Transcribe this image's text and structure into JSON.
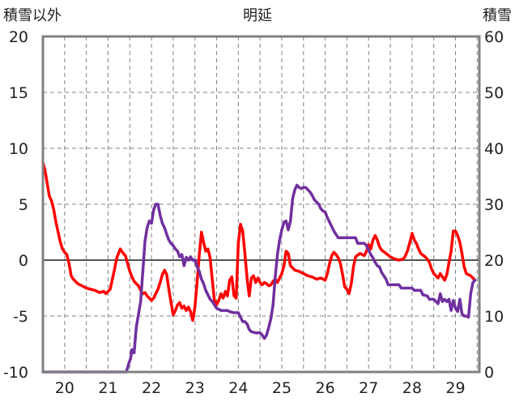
{
  "chart_data": {
    "type": "line",
    "title": "明延",
    "left_axis_label": "積雪以外",
    "right_axis_label": "積雪",
    "x_ticks": [
      "20",
      "21",
      "22",
      "23",
      "24",
      "25",
      "26",
      "27",
      "28",
      "29"
    ],
    "x_range": [
      19.5,
      29.55
    ],
    "y_left": {
      "ticks": [
        20,
        15,
        10,
        5,
        0,
        -5,
        -10
      ],
      "range": [
        -10,
        20
      ]
    },
    "y_right": {
      "ticks": [
        60,
        50,
        40,
        30,
        20,
        10,
        0
      ],
      "range": [
        0,
        60
      ]
    },
    "grid": true,
    "zero_line": true,
    "colors": {
      "temperature": "#ff0000",
      "snow": "#7030a0",
      "frame": "#808080",
      "grid": "#808080",
      "zero_line": "#555555"
    },
    "series": [
      {
        "axis": "left",
        "color": "#ff0000",
        "points": [
          [
            19.5,
            8.7
          ],
          [
            19.55,
            8.0
          ],
          [
            19.6,
            6.8
          ],
          [
            19.65,
            5.7
          ],
          [
            19.7,
            5.3
          ],
          [
            19.75,
            4.5
          ],
          [
            19.8,
            3.4
          ],
          [
            19.85,
            2.5
          ],
          [
            19.9,
            1.6
          ],
          [
            19.95,
            1.0
          ],
          [
            20.0,
            0.7
          ],
          [
            20.05,
            0.5
          ],
          [
            20.1,
            -0.3
          ],
          [
            20.15,
            -1.4
          ],
          [
            20.2,
            -1.7
          ],
          [
            20.3,
            -2.1
          ],
          [
            20.4,
            -2.3
          ],
          [
            20.5,
            -2.5
          ],
          [
            20.6,
            -2.6
          ],
          [
            20.7,
            -2.7
          ],
          [
            20.8,
            -2.9
          ],
          [
            20.9,
            -2.8
          ],
          [
            20.95,
            -3.0
          ],
          [
            21.05,
            -2.6
          ],
          [
            21.15,
            -0.8
          ],
          [
            21.2,
            0.2
          ],
          [
            21.28,
            1.0
          ],
          [
            21.35,
            0.6
          ],
          [
            21.4,
            0.4
          ],
          [
            21.45,
            -0.3
          ],
          [
            21.5,
            -1.0
          ],
          [
            21.55,
            -1.5
          ],
          [
            21.6,
            -1.9
          ],
          [
            21.65,
            -2.1
          ],
          [
            21.7,
            -2.3
          ],
          [
            21.75,
            -2.7
          ],
          [
            21.8,
            -3.0
          ],
          [
            21.85,
            -2.9
          ],
          [
            21.9,
            -3.2
          ],
          [
            21.95,
            -3.4
          ],
          [
            22.0,
            -3.6
          ],
          [
            22.05,
            -3.4
          ],
          [
            22.1,
            -3.0
          ],
          [
            22.15,
            -2.6
          ],
          [
            22.2,
            -2.0
          ],
          [
            22.25,
            -1.3
          ],
          [
            22.3,
            -0.9
          ],
          [
            22.35,
            -1.3
          ],
          [
            22.4,
            -2.6
          ],
          [
            22.45,
            -3.8
          ],
          [
            22.5,
            -4.9
          ],
          [
            22.55,
            -4.5
          ],
          [
            22.6,
            -4.0
          ],
          [
            22.65,
            -3.8
          ],
          [
            22.7,
            -4.3
          ],
          [
            22.75,
            -4.1
          ],
          [
            22.8,
            -4.5
          ],
          [
            22.85,
            -4.2
          ],
          [
            22.9,
            -4.6
          ],
          [
            22.95,
            -5.4
          ],
          [
            23.0,
            -4.2
          ],
          [
            23.05,
            -2.0
          ],
          [
            23.1,
            0.5
          ],
          [
            23.15,
            2.5
          ],
          [
            23.2,
            1.6
          ],
          [
            23.25,
            0.8
          ],
          [
            23.3,
            1.0
          ],
          [
            23.35,
            0.2
          ],
          [
            23.4,
            -1.8
          ],
          [
            23.45,
            -3.6
          ],
          [
            23.5,
            -4.0
          ],
          [
            23.55,
            -3.6
          ],
          [
            23.6,
            -3.0
          ],
          [
            23.65,
            -3.4
          ],
          [
            23.7,
            -2.8
          ],
          [
            23.75,
            -3.2
          ],
          [
            23.8,
            -1.8
          ],
          [
            23.85,
            -1.5
          ],
          [
            23.9,
            -3.2
          ],
          [
            23.95,
            -3.4
          ],
          [
            24.0,
            1.5
          ],
          [
            24.05,
            3.2
          ],
          [
            24.1,
            2.6
          ],
          [
            24.15,
            0.6
          ],
          [
            24.2,
            -1.6
          ],
          [
            24.25,
            -3.2
          ],
          [
            24.3,
            -1.6
          ],
          [
            24.35,
            -1.4
          ],
          [
            24.4,
            -2.0
          ],
          [
            24.45,
            -1.6
          ],
          [
            24.5,
            -2.0
          ],
          [
            24.55,
            -2.2
          ],
          [
            24.6,
            -2.0
          ],
          [
            24.65,
            -2.1
          ],
          [
            24.7,
            -2.3
          ],
          [
            24.75,
            -2.2
          ],
          [
            24.8,
            -1.9
          ],
          [
            24.85,
            -1.7
          ],
          [
            24.9,
            -2.0
          ],
          [
            24.95,
            -1.6
          ],
          [
            25.0,
            -1.2
          ],
          [
            25.05,
            -0.5
          ],
          [
            25.1,
            0.8
          ],
          [
            25.15,
            0.6
          ],
          [
            25.2,
            -0.5
          ],
          [
            25.3,
            -0.9
          ],
          [
            25.4,
            -1.0
          ],
          [
            25.5,
            -1.2
          ],
          [
            25.6,
            -1.4
          ],
          [
            25.7,
            -1.5
          ],
          [
            25.8,
            -1.7
          ],
          [
            25.9,
            -1.6
          ],
          [
            26.0,
            -1.8
          ],
          [
            26.05,
            -1.2
          ],
          [
            26.1,
            -0.3
          ],
          [
            26.15,
            0.4
          ],
          [
            26.2,
            0.7
          ],
          [
            26.25,
            0.5
          ],
          [
            26.3,
            0.2
          ],
          [
            26.35,
            -0.3
          ],
          [
            26.4,
            -1.3
          ],
          [
            26.45,
            -2.4
          ],
          [
            26.5,
            -2.6
          ],
          [
            26.55,
            -3.0
          ],
          [
            26.6,
            -2.1
          ],
          [
            26.65,
            -0.6
          ],
          [
            26.7,
            0.3
          ],
          [
            26.8,
            0.6
          ],
          [
            26.9,
            0.4
          ],
          [
            26.95,
            0.8
          ],
          [
            27.0,
            1.4
          ],
          [
            27.05,
            1.0
          ],
          [
            27.1,
            1.8
          ],
          [
            27.15,
            2.2
          ],
          [
            27.2,
            1.8
          ],
          [
            27.25,
            1.2
          ],
          [
            27.3,
            0.9
          ],
          [
            27.4,
            0.6
          ],
          [
            27.5,
            0.3
          ],
          [
            27.6,
            0.1
          ],
          [
            27.7,
            0.0
          ],
          [
            27.8,
            0.1
          ],
          [
            27.85,
            0.4
          ],
          [
            27.9,
            0.9
          ],
          [
            27.95,
            1.6
          ],
          [
            28.0,
            2.4
          ],
          [
            28.05,
            1.8
          ],
          [
            28.1,
            1.5
          ],
          [
            28.15,
            1.0
          ],
          [
            28.2,
            0.6
          ],
          [
            28.3,
            0.3
          ],
          [
            28.35,
            0.1
          ],
          [
            28.4,
            -0.2
          ],
          [
            28.45,
            -0.8
          ],
          [
            28.5,
            -1.2
          ],
          [
            28.55,
            -1.4
          ],
          [
            28.6,
            -1.6
          ],
          [
            28.65,
            -1.2
          ],
          [
            28.7,
            -1.5
          ],
          [
            28.75,
            -1.8
          ],
          [
            28.8,
            -1.3
          ],
          [
            28.85,
            -0.2
          ],
          [
            28.9,
            0.8
          ],
          [
            28.95,
            2.6
          ],
          [
            29.0,
            2.6
          ],
          [
            29.05,
            2.2
          ],
          [
            29.1,
            1.6
          ],
          [
            29.15,
            0.6
          ],
          [
            29.2,
            -0.6
          ],
          [
            29.25,
            -1.2
          ],
          [
            29.3,
            -1.3
          ],
          [
            29.35,
            -1.4
          ],
          [
            29.4,
            -1.6
          ],
          [
            29.45,
            -1.8
          ]
        ]
      },
      {
        "axis": "right",
        "color": "#7030a0",
        "points": [
          [
            19.5,
            0
          ],
          [
            21.42,
            0
          ],
          [
            21.48,
            1.6
          ],
          [
            21.52,
            2.4
          ],
          [
            21.55,
            4.0
          ],
          [
            21.6,
            3.4
          ],
          [
            21.65,
            8.0
          ],
          [
            21.7,
            10.3
          ],
          [
            21.75,
            12.6
          ],
          [
            21.8,
            18.0
          ],
          [
            21.85,
            23.3
          ],
          [
            21.9,
            25.8
          ],
          [
            21.95,
            27.0
          ],
          [
            22.0,
            26.6
          ],
          [
            22.05,
            29.0
          ],
          [
            22.1,
            30.0
          ],
          [
            22.15,
            30.0
          ],
          [
            22.2,
            28.0
          ],
          [
            22.25,
            26.6
          ],
          [
            22.3,
            25.8
          ],
          [
            22.35,
            24.6
          ],
          [
            22.4,
            23.6
          ],
          [
            22.45,
            23.0
          ],
          [
            22.5,
            22.6
          ],
          [
            22.55,
            22.0
          ],
          [
            22.6,
            21.6
          ],
          [
            22.65,
            20.6
          ],
          [
            22.7,
            21.0
          ],
          [
            22.75,
            19.0
          ],
          [
            22.8,
            20.5
          ],
          [
            22.85,
            20.0
          ],
          [
            22.9,
            20.6
          ],
          [
            22.95,
            20.0
          ],
          [
            23.0,
            20.0
          ],
          [
            23.05,
            18.8
          ],
          [
            23.1,
            18.0
          ],
          [
            23.15,
            16.6
          ],
          [
            23.2,
            15.8
          ],
          [
            23.25,
            14.6
          ],
          [
            23.3,
            13.8
          ],
          [
            23.35,
            13.0
          ],
          [
            23.4,
            12.6
          ],
          [
            23.45,
            12.0
          ],
          [
            23.5,
            11.4
          ],
          [
            23.55,
            11.2
          ],
          [
            23.6,
            11.0
          ],
          [
            23.75,
            11.0
          ],
          [
            23.8,
            10.8
          ],
          [
            23.9,
            10.6
          ],
          [
            24.0,
            10.6
          ],
          [
            24.05,
            9.8
          ],
          [
            24.1,
            9.0
          ],
          [
            24.15,
            9.0
          ],
          [
            24.2,
            8.6
          ],
          [
            24.25,
            7.6
          ],
          [
            24.3,
            7.2
          ],
          [
            24.4,
            7.0
          ],
          [
            24.45,
            7.0
          ],
          [
            24.5,
            7.0
          ],
          [
            24.55,
            6.6
          ],
          [
            24.6,
            6.0
          ],
          [
            24.65,
            6.6
          ],
          [
            24.7,
            8.0
          ],
          [
            24.75,
            9.6
          ],
          [
            24.8,
            12.0
          ],
          [
            24.85,
            17.0
          ],
          [
            24.9,
            21.0
          ],
          [
            24.95,
            23.6
          ],
          [
            25.0,
            25.4
          ],
          [
            25.05,
            26.8
          ],
          [
            25.1,
            27.0
          ],
          [
            25.15,
            25.4
          ],
          [
            25.2,
            27.0
          ],
          [
            25.25,
            31.0
          ],
          [
            25.3,
            32.6
          ],
          [
            25.35,
            33.4
          ],
          [
            25.4,
            33.0
          ],
          [
            25.45,
            32.8
          ],
          [
            25.5,
            33.0
          ],
          [
            25.55,
            33.0
          ],
          [
            25.6,
            32.6
          ],
          [
            25.65,
            32.2
          ],
          [
            25.7,
            31.6
          ],
          [
            25.75,
            30.8
          ],
          [
            25.8,
            30.4
          ],
          [
            25.85,
            30.0
          ],
          [
            25.9,
            29.2
          ],
          [
            25.95,
            28.8
          ],
          [
            26.0,
            28.6
          ],
          [
            26.05,
            27.6
          ],
          [
            26.1,
            26.8
          ],
          [
            26.15,
            26.0
          ],
          [
            26.2,
            25.2
          ],
          [
            26.25,
            24.6
          ],
          [
            26.3,
            24.0
          ],
          [
            26.35,
            24.0
          ],
          [
            26.7,
            24.0
          ],
          [
            26.75,
            23.0
          ],
          [
            26.8,
            23.0
          ],
          [
            26.9,
            23.0
          ],
          [
            26.95,
            22.6
          ],
          [
            27.0,
            21.8
          ],
          [
            27.05,
            21.0
          ],
          [
            27.1,
            20.4
          ],
          [
            27.15,
            19.6
          ],
          [
            27.2,
            19.0
          ],
          [
            27.25,
            18.8
          ],
          [
            27.3,
            17.8
          ],
          [
            27.35,
            17.2
          ],
          [
            27.4,
            16.6
          ],
          [
            27.45,
            15.6
          ],
          [
            27.7,
            15.6
          ],
          [
            27.75,
            15.0
          ],
          [
            28.0,
            15.0
          ],
          [
            28.05,
            14.6
          ],
          [
            28.2,
            14.6
          ],
          [
            28.25,
            13.8
          ],
          [
            28.35,
            13.6
          ],
          [
            28.4,
            13.0
          ],
          [
            28.5,
            13.0
          ],
          [
            28.55,
            12.6
          ],
          [
            28.6,
            12.2
          ],
          [
            28.65,
            14.0
          ],
          [
            28.7,
            12.6
          ],
          [
            28.75,
            13.0
          ],
          [
            28.8,
            12.6
          ],
          [
            28.85,
            13.0
          ],
          [
            28.9,
            11.0
          ],
          [
            28.95,
            12.8
          ],
          [
            29.0,
            11.4
          ],
          [
            29.05,
            10.8
          ],
          [
            29.1,
            13.0
          ],
          [
            29.15,
            10.4
          ],
          [
            29.2,
            10.0
          ],
          [
            29.25,
            10.0
          ],
          [
            29.3,
            9.8
          ],
          [
            29.35,
            14.0
          ],
          [
            29.4,
            16.0
          ],
          [
            29.45,
            16.4
          ]
        ]
      }
    ]
  }
}
